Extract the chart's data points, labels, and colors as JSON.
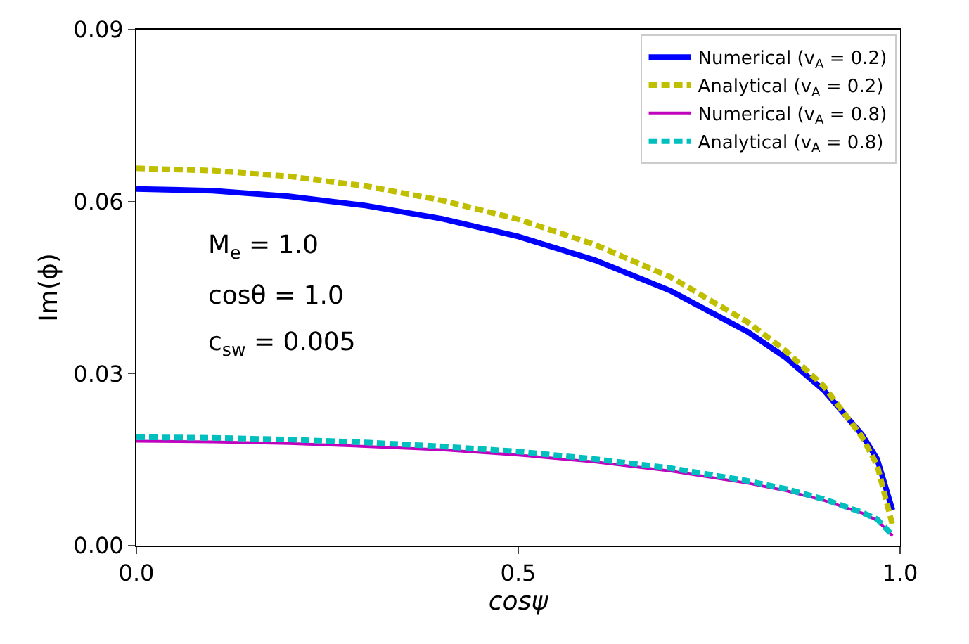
{
  "chart_data": {
    "type": "line",
    "xlabel": "cosψ",
    "ylabel": "Im(ϕ)",
    "x": [
      0,
      0.1,
      0.2,
      0.3,
      0.4,
      0.5,
      0.6,
      0.7,
      0.8,
      0.85,
      0.9,
      0.95,
      0.97,
      0.99
    ],
    "xlim": [
      0,
      1
    ],
    "ylim": [
      0,
      0.09
    ],
    "xticks": [
      {
        "value": 0,
        "label": "0.0"
      },
      0.5,
      {
        "value": 1,
        "label": "1.0"
      }
    ],
    "yticks": [
      {
        "value": 0,
        "label": "0.00"
      },
      0.03,
      0.06,
      0.09
    ],
    "legend": "top right",
    "marker": "none",
    "series": [
      {
        "name": "Numerical (v$_{A}$ = 0.2)",
        "color": "#0000ff",
        "line_style": "solid",
        "values": [
          0.0622,
          0.0619,
          0.0609,
          0.0593,
          0.057,
          0.0539,
          0.0498,
          0.0444,
          0.0373,
          0.0328,
          0.0271,
          0.0194,
          0.0151,
          0.0062
        ]
      },
      {
        "name": "Analytical (v$_{A}$ = 0.2)",
        "color": "#bfbf00",
        "line_style": "dashed",
        "values": [
          0.0658,
          0.0654,
          0.0644,
          0.0627,
          0.0602,
          0.0569,
          0.0525,
          0.0468,
          0.039,
          0.034,
          0.0278,
          0.019,
          0.014,
          0.0036
        ]
      },
      {
        "name": "Numerical (v$_{A}$ = 0.8)",
        "color": "#bf00bf",
        "line_style": "solid",
        "values": [
          0.0182,
          0.0181,
          0.0178,
          0.0173,
          0.0167,
          0.0158,
          0.0146,
          0.013,
          0.0109,
          0.0096,
          0.0079,
          0.0057,
          0.0044,
          0.0017
        ]
      },
      {
        "name": "Analytical (v$_{A}$ = 0.8)",
        "color": "#00bfbf",
        "line_style": "dashed",
        "values": [
          0.0189,
          0.0188,
          0.0185,
          0.018,
          0.0173,
          0.0164,
          0.0151,
          0.0135,
          0.0113,
          0.0099,
          0.0081,
          0.0058,
          0.0046,
          0.0018
        ]
      }
    ],
    "annotations": [
      "M$_{e}$ = 1.0",
      "cosθ = 1.0",
      "c$_{sw}$ = 0.005"
    ]
  }
}
